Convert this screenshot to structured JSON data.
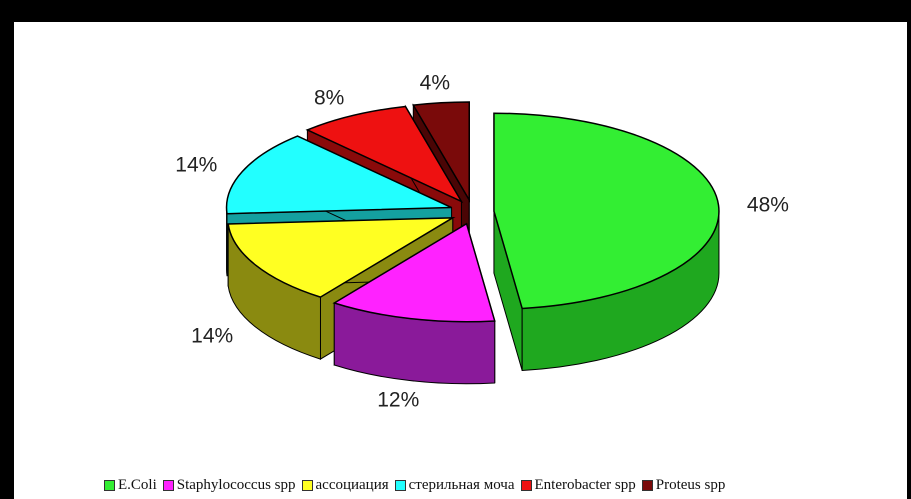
{
  "chart_data": {
    "type": "pie",
    "title": "",
    "slices": [
      {
        "name": "E.Coli",
        "value": 48,
        "label": "48%",
        "color": "#33ee33",
        "side_color": "#1fa81f"
      },
      {
        "name": "Staphylococcus spp",
        "value": 12,
        "label": "12%",
        "color": "#ff22ff",
        "side_color": "#8a1a9a"
      },
      {
        "name": "ассоциация",
        "value": 14,
        "label": "14%",
        "color": "#ffff22",
        "side_color": "#8a8a10"
      },
      {
        "name": "стерильная моча",
        "value": 14,
        "label": "14%",
        "color": "#22ffff",
        "side_color": "#14a0a0"
      },
      {
        "name": "Enterobacter spp",
        "value": 8,
        "label": "8%",
        "color": "#ee1111",
        "side_color": "#8a0a0a"
      },
      {
        "name": "Proteus spp",
        "value": 4,
        "label": "4%",
        "color": "#7a0a0a",
        "side_color": "#4a0505"
      }
    ],
    "legend_placement": "bottom",
    "exploded": true,
    "style": "3d"
  }
}
